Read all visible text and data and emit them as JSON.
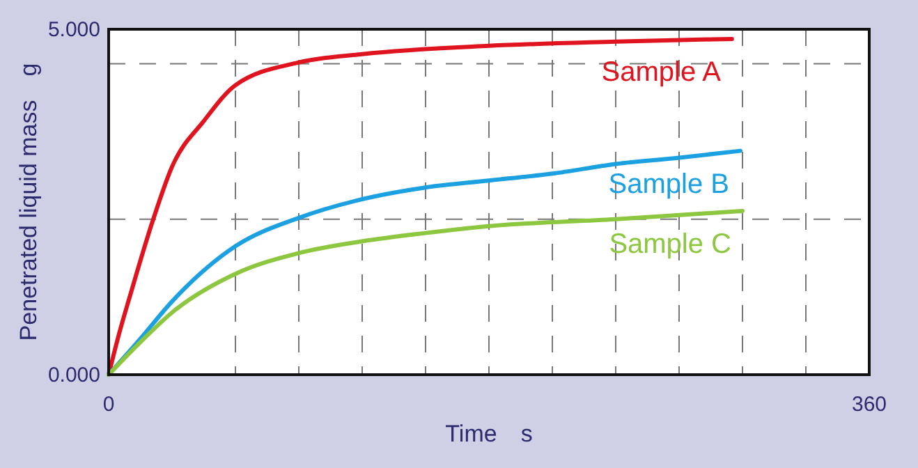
{
  "chart_data": {
    "type": "line",
    "xlabel": "Time　s",
    "ylabel": "Penetrated liquid mass　g",
    "xlim": [
      0,
      360
    ],
    "ylim": [
      0,
      5
    ],
    "xticks": [
      {
        "value": 0,
        "label": "0"
      },
      {
        "value": 60,
        "label": null
      },
      {
        "value": 90,
        "label": null
      },
      {
        "value": 120,
        "label": null
      },
      {
        "value": 150,
        "label": null
      },
      {
        "value": 180,
        "label": null
      },
      {
        "value": 210,
        "label": null
      },
      {
        "value": 240,
        "label": null
      },
      {
        "value": 270,
        "label": null
      },
      {
        "value": 300,
        "label": null
      },
      {
        "value": 330,
        "label": null
      },
      {
        "value": 360,
        "label": "360"
      }
    ],
    "yticks": [
      {
        "value": 0,
        "label": "0.000"
      },
      {
        "value": 2.25,
        "label": null
      },
      {
        "value": 4.5,
        "label": null
      },
      {
        "value": 5,
        "label": "5.000"
      }
    ],
    "grid": true,
    "legend": false,
    "marker": "none",
    "line_style": "solid",
    "series": [
      {
        "name": "Sample A",
        "color": "#e0141e",
        "x": [
          0,
          5,
          10,
          21,
          30,
          45,
          60,
          90,
          120,
          180,
          240,
          295
        ],
        "values": [
          0,
          0.6,
          1.13,
          2.24,
          3.01,
          3.67,
          4.19,
          4.52,
          4.64,
          4.76,
          4.82,
          4.86
        ]
      },
      {
        "name": "Sample B",
        "color": "#1ba1e2",
        "x": [
          0,
          15,
          30,
          60,
          90,
          120,
          150,
          180,
          210,
          240,
          270,
          299
        ],
        "values": [
          0,
          0.52,
          1.06,
          1.86,
          2.27,
          2.54,
          2.71,
          2.81,
          2.91,
          3.05,
          3.14,
          3.24
        ]
      },
      {
        "name": "Sample C",
        "color": "#8dc63f",
        "x": [
          0,
          15,
          30,
          60,
          90,
          120,
          150,
          180,
          240,
          300
        ],
        "values": [
          0,
          0.47,
          0.9,
          1.46,
          1.76,
          1.93,
          2.05,
          2.15,
          2.25,
          2.37
        ]
      }
    ]
  }
}
